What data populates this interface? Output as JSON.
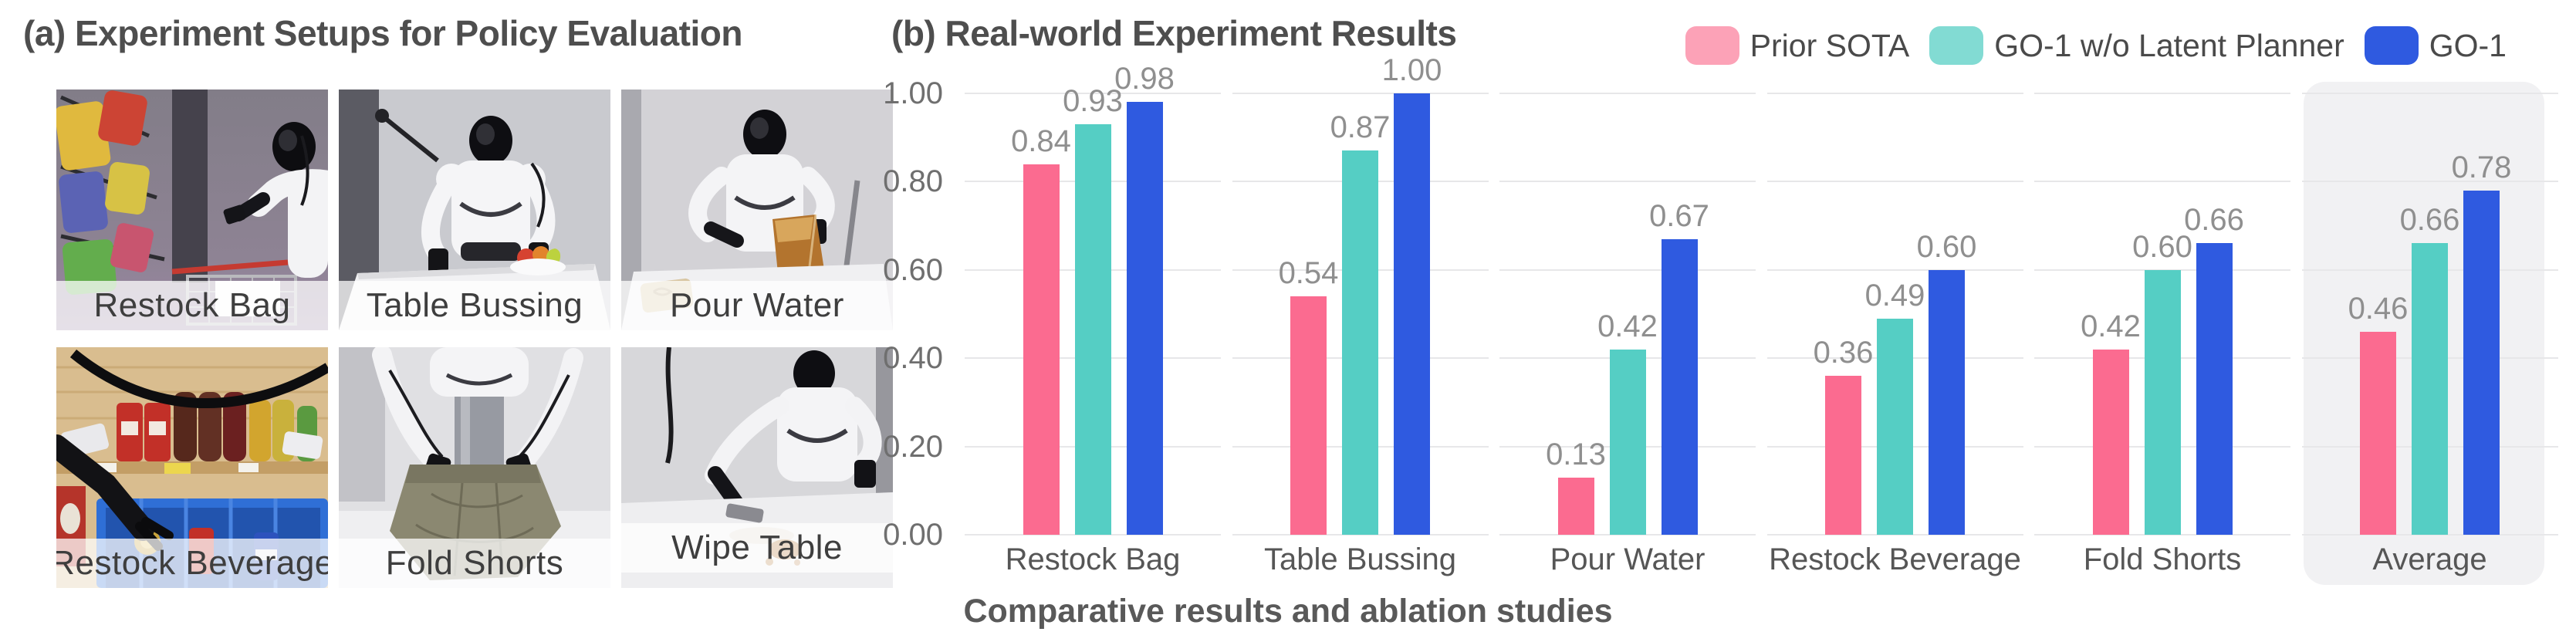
{
  "panel_a": {
    "title": "(a) Experiment Setups for Policy Evaluation",
    "tasks": [
      {
        "label": "Restock Bag"
      },
      {
        "label": "Table Bussing"
      },
      {
        "label": "Pour Water"
      },
      {
        "label": "Restock Beverage"
      },
      {
        "label": "Fold Shorts"
      },
      {
        "label": "Wipe Table"
      }
    ]
  },
  "panel_b": {
    "title": "(b) Real-world Experiment Results",
    "caption": "Comparative results and ablation studies"
  },
  "chart_data": {
    "type": "bar",
    "title": "(b) Real-world Experiment Results",
    "categories": [
      "Restock Bag",
      "Table Bussing",
      "Pour Water",
      "Restock Beverage",
      "Fold Shorts",
      "Average"
    ],
    "series": [
      {
        "name": "Prior SOTA",
        "color": "#FB6B90",
        "legend_color": "#FCA2B7",
        "values": [
          0.84,
          0.54,
          0.13,
          0.36,
          0.42,
          0.46
        ]
      },
      {
        "name": "GO-1 w/o Latent Planner",
        "color": "#55CEC4",
        "legend_color": "#82DBD3",
        "values": [
          0.93,
          0.87,
          0.42,
          0.49,
          0.6,
          0.66
        ]
      },
      {
        "name": "GO-1",
        "color": "#2F5AE0",
        "legend_color": "#2F5AE0",
        "values": [
          0.98,
          1.0,
          0.67,
          0.6,
          0.66,
          0.78
        ]
      }
    ],
    "ylim": [
      0,
      1.0
    ],
    "yticks": [
      0.0,
      0.2,
      0.4,
      0.6,
      0.8,
      1.0
    ],
    "ytick_labels": [
      "0.00",
      "0.20",
      "0.40",
      "0.60",
      "0.80",
      "1.00"
    ],
    "value_labels_decimals": 2,
    "grid": true,
    "gridline_color": "#E7E7E9",
    "highlight_category": "Average",
    "highlight_color": "#F1F1F3",
    "legend_position": "top-right"
  }
}
